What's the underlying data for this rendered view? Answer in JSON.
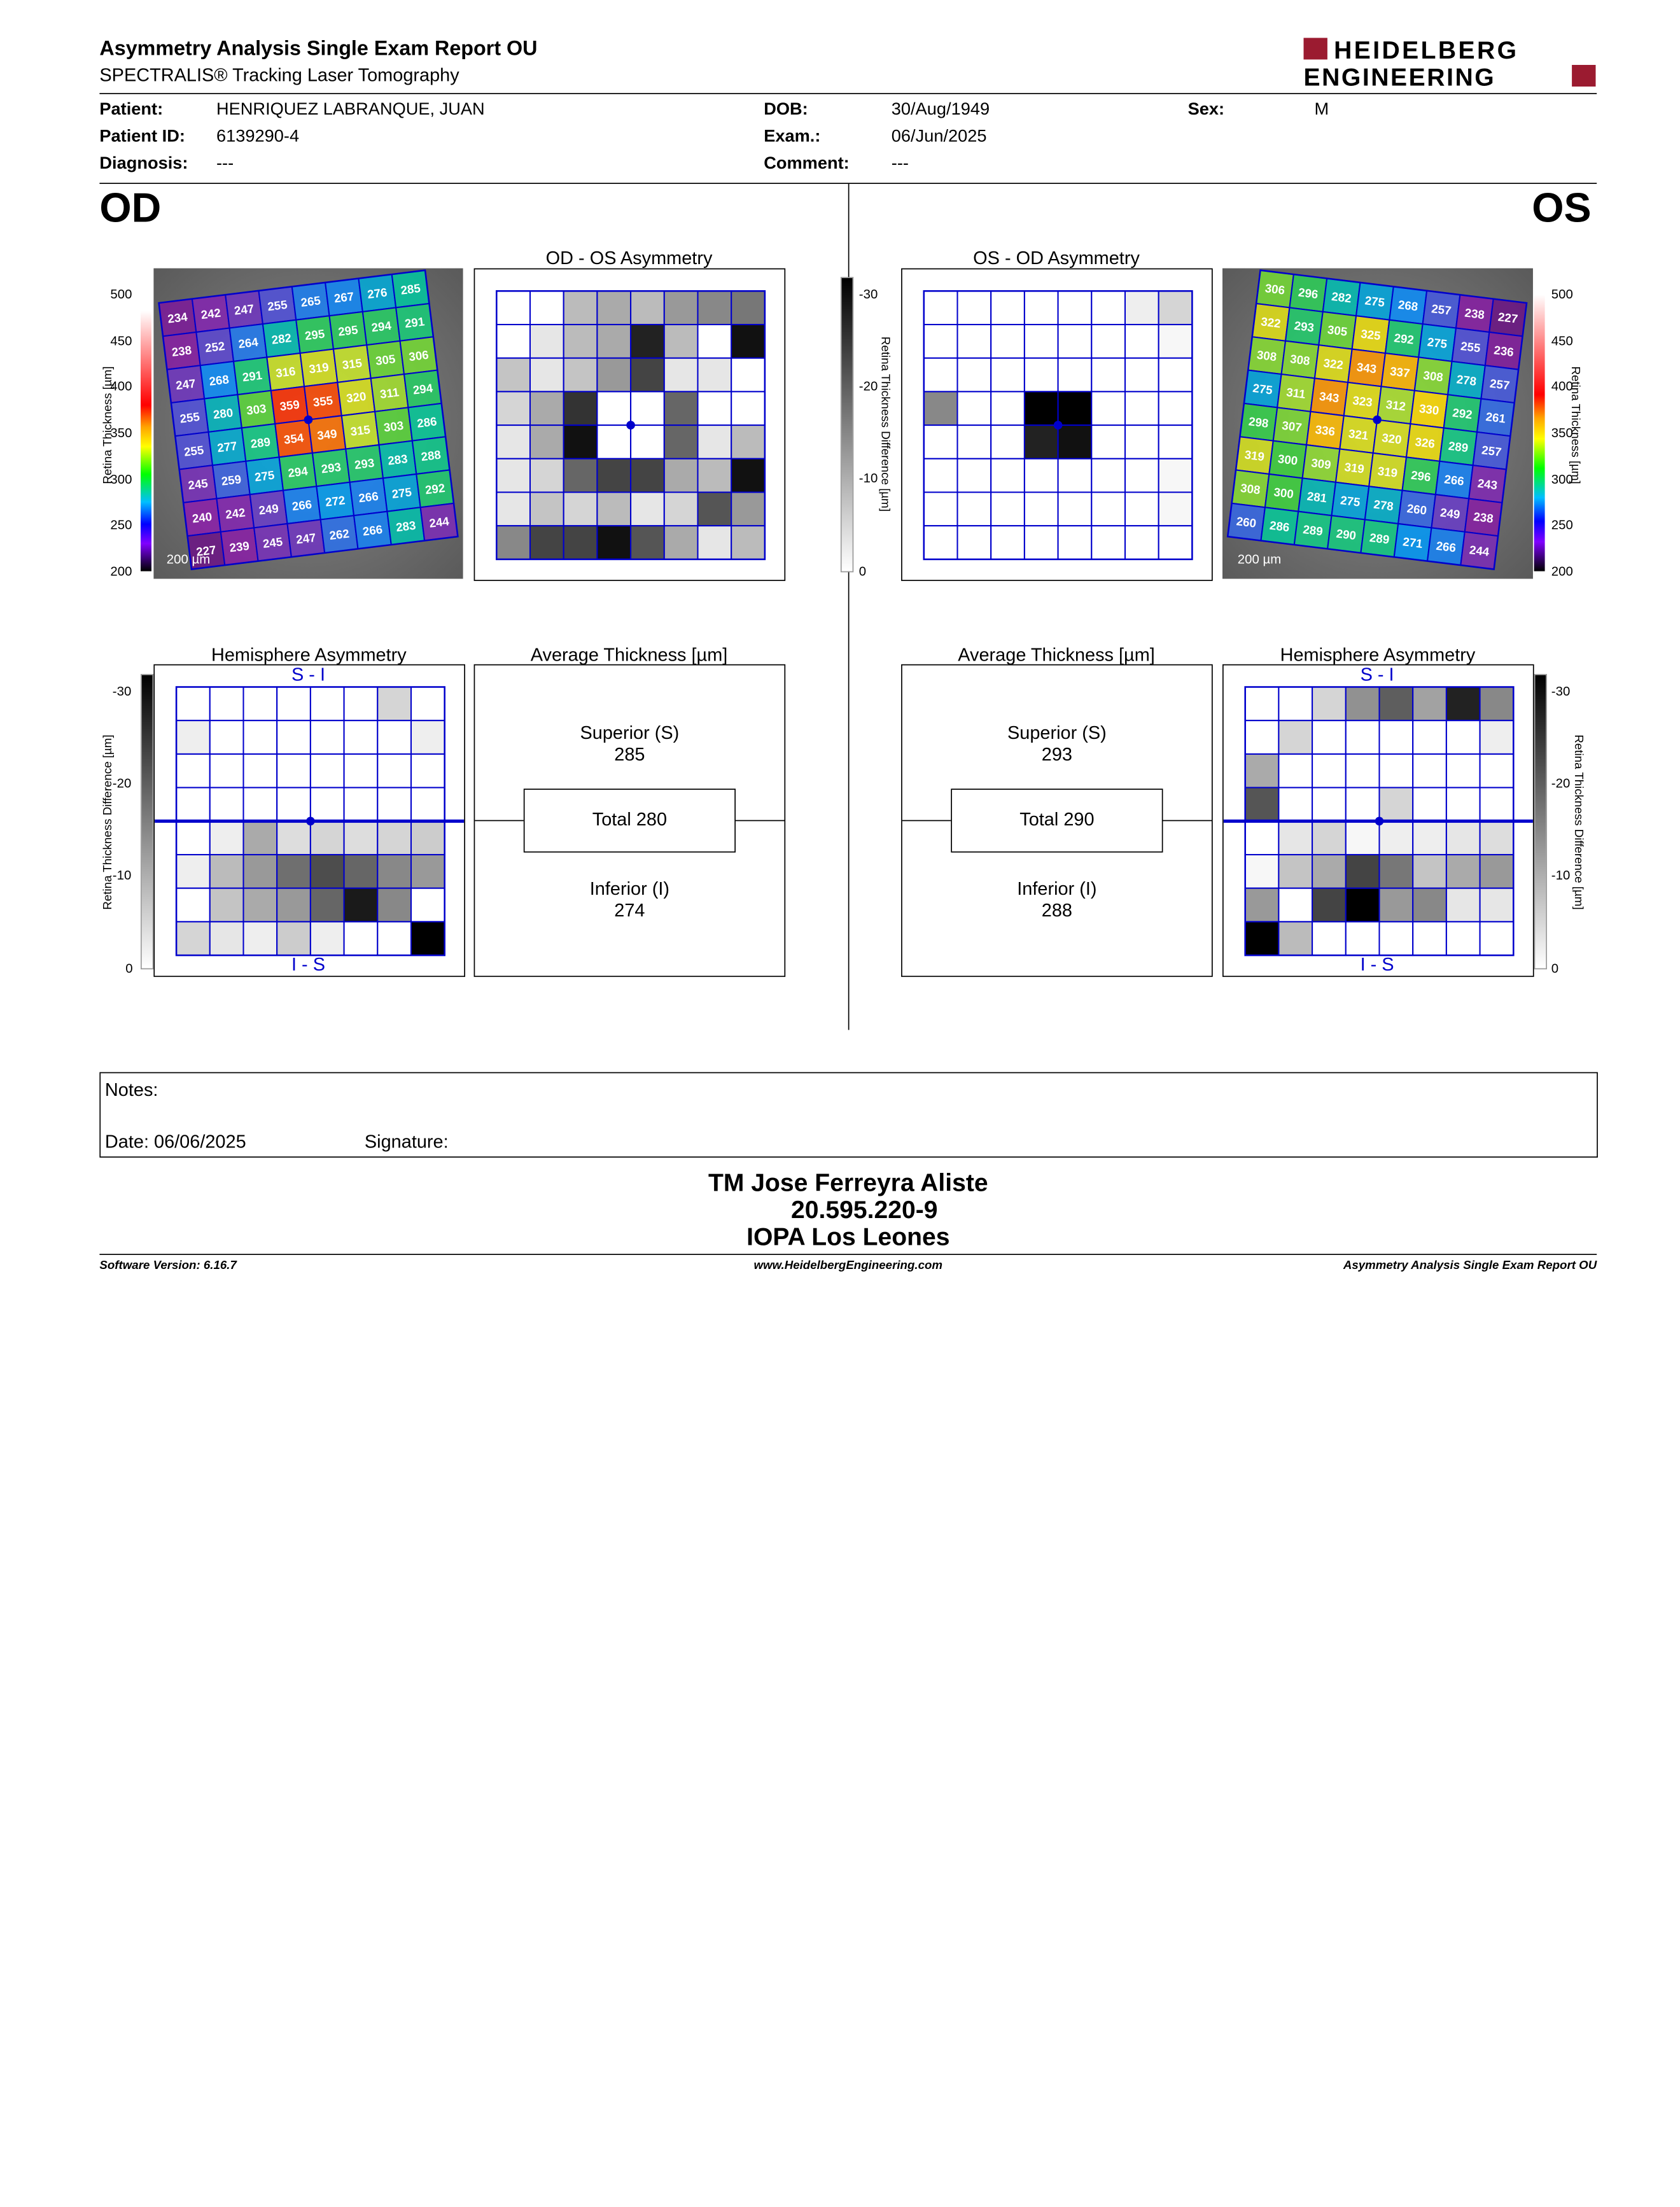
{
  "header": {
    "title": "Asymmetry Analysis Single Exam Report OU",
    "subtitle": "SPECTRALIS® Tracking Laser Tomography",
    "logo_line1": "HEIDELBERG",
    "logo_line2": "ENGINEERING"
  },
  "patient": {
    "patient_label": "Patient:",
    "patient_value": "HENRIQUEZ LABRANQUE, JUAN",
    "id_label": "Patient ID:",
    "id_value": "6139290-4",
    "diag_label": "Diagnosis:",
    "diag_value": "---",
    "dob_label": "DOB:",
    "dob_value": "30/Aug/1949",
    "exam_label": "Exam.:",
    "exam_value": "06/Jun/2025",
    "comment_label": "Comment:",
    "comment_value": "---",
    "sex_label": "Sex:",
    "sex_value": "M"
  },
  "od": {
    "eye": "OD",
    "scale_label": "200 µm",
    "thickness_grid": [
      [
        234,
        242,
        247,
        255,
        265,
        267,
        276,
        285
      ],
      [
        238,
        252,
        264,
        282,
        295,
        295,
        294,
        291
      ],
      [
        247,
        268,
        291,
        316,
        319,
        315,
        305,
        306
      ],
      [
        255,
        280,
        303,
        359,
        355,
        320,
        311,
        294
      ],
      [
        255,
        277,
        289,
        354,
        349,
        315,
        303,
        286
      ],
      [
        245,
        259,
        275,
        294,
        293,
        293,
        283,
        288
      ],
      [
        240,
        242,
        249,
        266,
        272,
        266,
        275,
        292
      ],
      [
        227,
        239,
        245,
        247,
        262,
        266,
        283,
        244
      ]
    ],
    "asym_title": "OD - OS Asymmetry",
    "asym_grid": [
      [
        0,
        0,
        8,
        10,
        8,
        12,
        14,
        16
      ],
      [
        0,
        3,
        8,
        10,
        26,
        8,
        0,
        28
      ],
      [
        7,
        3,
        7,
        12,
        22,
        3,
        3,
        0
      ],
      [
        5,
        10,
        24,
        0,
        0,
        18,
        0,
        0
      ],
      [
        3,
        10,
        28,
        0,
        0,
        18,
        3,
        8
      ],
      [
        3,
        5,
        18,
        22,
        22,
        10,
        8,
        28
      ],
      [
        3,
        7,
        5,
        8,
        3,
        5,
        20,
        12
      ],
      [
        14,
        22,
        22,
        28,
        20,
        10,
        3,
        8
      ]
    ],
    "hemi_title": "Hemisphere Asymmetry",
    "hemi_top_label": "S - I",
    "hemi_bottom_label": "I - S",
    "hemi_grid": [
      [
        0,
        0,
        0,
        0,
        0,
        0,
        5,
        0
      ],
      [
        2,
        0,
        0,
        0,
        0,
        0,
        0,
        2
      ],
      [
        0,
        0,
        0,
        0,
        0,
        0,
        0,
        0
      ],
      [
        0,
        0,
        0,
        0,
        0,
        0,
        0,
        0
      ],
      [
        0,
        2,
        10,
        4,
        5,
        4,
        5,
        6
      ],
      [
        2,
        8,
        12,
        17,
        21,
        18,
        14,
        12
      ],
      [
        0,
        7,
        10,
        12,
        18,
        27,
        14,
        0
      ],
      [
        5,
        3,
        2,
        6,
        2,
        0,
        0,
        30
      ]
    ],
    "avg_title": "Average Thickness [µm]",
    "superior_label": "Superior (S)",
    "superior_value": "285",
    "total_label": "Total 280",
    "inferior_label": "Inferior (I)",
    "inferior_value": "274"
  },
  "os": {
    "eye": "OS",
    "scale_label": "200 µm",
    "thickness_grid": [
      [
        306,
        296,
        282,
        275,
        268,
        257,
        238,
        227
      ],
      [
        322,
        293,
        305,
        325,
        292,
        275,
        255,
        236
      ],
      [
        308,
        308,
        322,
        343,
        337,
        308,
        278,
        257
      ],
      [
        275,
        311,
        343,
        323,
        312,
        330,
        292,
        261
      ],
      [
        298,
        307,
        336,
        321,
        320,
        326,
        289,
        257
      ],
      [
        319,
        300,
        309,
        319,
        319,
        296,
        266,
        243
      ],
      [
        308,
        300,
        281,
        275,
        278,
        260,
        249,
        238
      ],
      [
        260,
        286,
        289,
        290,
        289,
        271,
        266,
        244
      ]
    ],
    "asym_title": "OS - OD Asymmetry",
    "asym_grid": [
      [
        0,
        0,
        0,
        0,
        0,
        0,
        2,
        5
      ],
      [
        0,
        0,
        0,
        0,
        0,
        0,
        0,
        1
      ],
      [
        0,
        0,
        0,
        0,
        0,
        0,
        0,
        0
      ],
      [
        14,
        0,
        0,
        30,
        30,
        0,
        0,
        0
      ],
      [
        0,
        0,
        0,
        26,
        28,
        0,
        0,
        0
      ],
      [
        0,
        0,
        0,
        0,
        0,
        0,
        0,
        1
      ],
      [
        0,
        0,
        0,
        0,
        0,
        0,
        0,
        1
      ],
      [
        0,
        0,
        0,
        0,
        0,
        0,
        0,
        0
      ]
    ],
    "hemi_title": "Hemisphere Asymmetry",
    "hemi_top_label": "S - I",
    "hemi_bottom_label": "I - S",
    "hemi_grid": [
      [
        0,
        0,
        5,
        13,
        19,
        11,
        26,
        14
      ],
      [
        0,
        5,
        0,
        0,
        0,
        0,
        0,
        2
      ],
      [
        10,
        0,
        0,
        0,
        0,
        0,
        0,
        0
      ],
      [
        20,
        0,
        0,
        0,
        5,
        0,
        0,
        0
      ],
      [
        0,
        3,
        5,
        1,
        2,
        2,
        3,
        4
      ],
      [
        1,
        7,
        10,
        22,
        16,
        7,
        10,
        12
      ],
      [
        12,
        0,
        22,
        30,
        12,
        14,
        3,
        3
      ],
      [
        30,
        8,
        0,
        0,
        0,
        0,
        0,
        0
      ]
    ],
    "avg_title": "Average Thickness [µm]",
    "superior_label": "Superior (S)",
    "superior_value": "293",
    "total_label": "Total 290",
    "inferior_label": "Inferior (I)",
    "inferior_value": "288"
  },
  "thickness_scale": {
    "label": "Retina Thickness [µm]",
    "ticks": [
      "500",
      "450",
      "400",
      "350",
      "300",
      "250",
      "200"
    ]
  },
  "diff_scale": {
    "label": "Retina Thickness Difference [µm]",
    "ticks": [
      "-30",
      "-20",
      "-10",
      "0"
    ]
  },
  "notes": {
    "notes_label": "Notes:",
    "date_label": "Date: 06/06/2025",
    "signature_label": "Signature:"
  },
  "signature_block": {
    "line1": "TM Jose Ferreyra Aliste",
    "line2": "20.595.220-9",
    "line3": "IOPA Los Leones"
  },
  "footer": {
    "left": "Software Version: 6.16.7",
    "center": "www.HeidelbergEngineering.com",
    "right": "Asymmetry Analysis Single Exam Report OU"
  },
  "colors": {
    "grid_blue": "#0000cc",
    "logo_red": "#9b1b30"
  }
}
